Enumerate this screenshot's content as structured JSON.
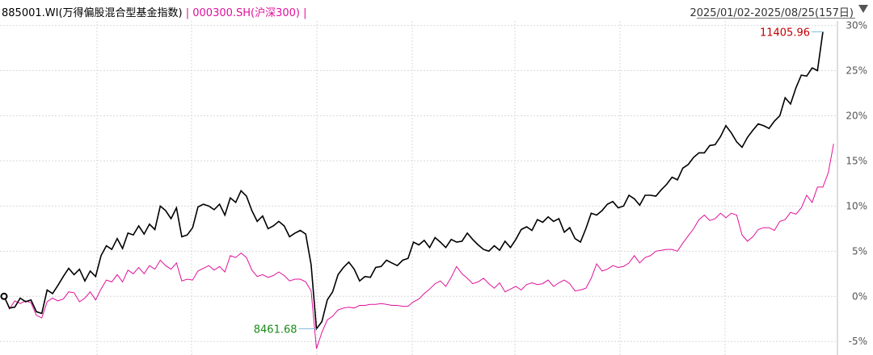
{
  "header": {
    "series1_label": "885001.WI(万得偏股混合型基金指数)",
    "sep1": " | ",
    "series2_label": "000300.SH(沪深300)",
    "sep2": " |",
    "date_range": "2025/01/02-2025/08/25(157日)"
  },
  "colors": {
    "series1": "#000000",
    "series2": "#e0119a",
    "grid": "#d9d9d9",
    "high": "#c00000",
    "low": "#1a8a1a"
  },
  "chart_data": {
    "type": "line",
    "x_start": "2025/01/02",
    "x_end": "2025/08/25",
    "x_count": 157,
    "ylabel": "",
    "ylim": [
      -6.5,
      30.5
    ],
    "y_ticks": [
      -5,
      0,
      5,
      10,
      15,
      20,
      25,
      30
    ],
    "y_tick_labels": [
      "-5%",
      "0%",
      "5%",
      "10%",
      "15%",
      "20%",
      "25%",
      "30%"
    ],
    "grid": true,
    "annotations": {
      "max_value": "11405.96",
      "min_value": "8461.68"
    },
    "series": [
      {
        "name": "885001.WI(万得偏股混合型基金指数)",
        "values": [
          0,
          -1.3,
          -1.2,
          -0.2,
          -0.6,
          -0.4,
          -1.7,
          -1.9,
          0.7,
          0.3,
          1.2,
          2.2,
          3.1,
          2.4,
          3,
          1.7,
          2.8,
          2.2,
          4.5,
          5.6,
          5.2,
          6.4,
          5.3,
          7,
          6.8,
          7.8,
          6.9,
          8,
          7.4,
          10,
          9.5,
          8.6,
          9.8,
          6.6,
          6.8,
          7.6,
          9.9,
          10.2,
          10,
          9.6,
          10.2,
          9,
          10.9,
          10.4,
          11.7,
          11.1,
          9.5,
          8.3,
          8.9,
          7.5,
          7.8,
          8.3,
          7.8,
          6.6,
          7,
          7.3,
          6.9,
          3.5,
          -3.6,
          -2.8,
          -0.4,
          0.5,
          2.4,
          3.2,
          3.8,
          3,
          1.7,
          2.2,
          2.1,
          3.2,
          3.3,
          4,
          3.7,
          3.4,
          4,
          4.2,
          6,
          5.7,
          6.2,
          5.4,
          6.5,
          6,
          5.4,
          6.3,
          6,
          6.1,
          7,
          6.3,
          5.7,
          5.2,
          5,
          5.6,
          5.1,
          6.1,
          5.4,
          6.3,
          7.4,
          7.7,
          7.3,
          8.5,
          8.2,
          8.8,
          8.3,
          8.6,
          7.1,
          7.6,
          6.4,
          6,
          7.5,
          9.2,
          9,
          9.5,
          10.2,
          10.5,
          9.8,
          10,
          11.2,
          10.8,
          10.1,
          11.2,
          11.2,
          11.1,
          11.8,
          12.4,
          13.2,
          12.9,
          14.2,
          14.6,
          15.4,
          15.9,
          15.9,
          16.7,
          16.8,
          17.7,
          18.9,
          18.1,
          17.1,
          16.5,
          17.6,
          18.4,
          19.1,
          18.9,
          18.6,
          19.4,
          20,
          22,
          21.3,
          23.1,
          24.5,
          24.4,
          25.3,
          25,
          29.3
        ]
      },
      {
        "name": "000300.SH(沪深300)",
        "values": [
          0,
          -1.4,
          -0.5,
          -0.8,
          -0.5,
          -0.7,
          -2.1,
          -2.4,
          -0.6,
          -0.2,
          -0.5,
          -0.3,
          0.5,
          0.4,
          -0.6,
          -0.2,
          0.5,
          -0.4,
          0.8,
          1.8,
          1.6,
          2.4,
          1.6,
          2.9,
          2.5,
          3.2,
          2.5,
          3.4,
          3,
          4,
          3.4,
          3,
          3.7,
          1.7,
          1.9,
          1.8,
          2.8,
          3.1,
          3.4,
          2.9,
          3.3,
          2.7,
          4.5,
          4.3,
          4.8,
          4.3,
          2.9,
          2.2,
          2.4,
          2.1,
          2.3,
          2.7,
          2.3,
          1.7,
          1.9,
          1.9,
          1.6,
          0.6,
          -5.8,
          -4,
          -2.6,
          -2.2,
          -1.5,
          -1.3,
          -1.2,
          -1.3,
          -1,
          -1,
          -0.9,
          -0.9,
          -0.8,
          -0.9,
          -1,
          -1,
          -1.1,
          -1.1,
          -0.6,
          -0.3,
          0.3,
          0.8,
          1.4,
          1.7,
          1.1,
          2.1,
          3.3,
          2.5,
          2,
          1.4,
          1.6,
          2,
          1.4,
          0.9,
          1.5,
          0.5,
          0.8,
          1.1,
          0.7,
          1.3,
          1.5,
          1.3,
          1.4,
          1.8,
          1.1,
          1.5,
          1.8,
          1.4,
          0.6,
          0.7,
          0.9,
          2,
          3.6,
          2.8,
          3,
          3.4,
          3.2,
          3.3,
          3.7,
          4.5,
          3.7,
          4.3,
          4.5,
          5,
          5.1,
          5.2,
          5.2,
          5,
          5.9,
          6.7,
          7.5,
          8.5,
          9,
          8.4,
          8.6,
          9.2,
          8.7,
          9.2,
          9,
          6.8,
          6.1,
          6.6,
          7.4,
          7.6,
          7.6,
          7.3,
          8.3,
          8.5,
          9.3,
          9.1,
          9.8,
          11.2,
          10.4,
          12.1,
          12.1,
          13.7,
          16.9
        ]
      }
    ]
  }
}
